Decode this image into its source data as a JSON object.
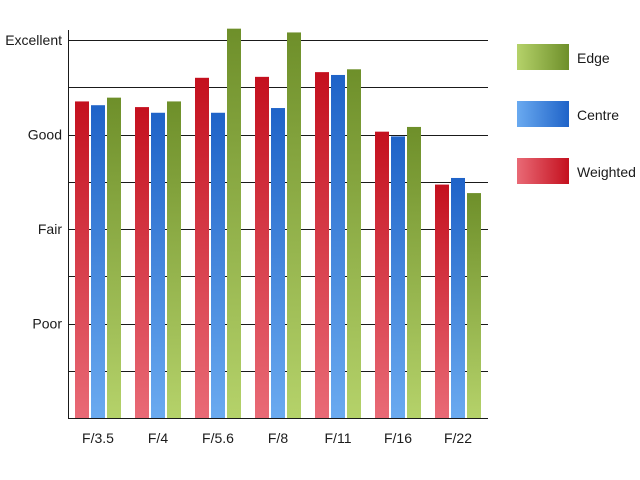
{
  "chart_data": {
    "type": "bar",
    "title": "",
    "xlabel": "",
    "ylabel": "",
    "categories": [
      "F/3.5",
      "F/4",
      "F/5.6",
      "F/8",
      "F/11",
      "F/16",
      "F/22"
    ],
    "y_tick_labels": [
      {
        "label": "Poor",
        "value": 1
      },
      {
        "label": "Fair",
        "value": 2
      },
      {
        "label": "Good",
        "value": 3
      },
      {
        "label": "Excellent",
        "value": 4
      }
    ],
    "ylim": [
      0,
      4
    ],
    "grid": true,
    "legend_position": "right",
    "series": [
      {
        "name": "Weighted",
        "color": "#c4101e",
        "light": "#e96a76",
        "values": [
          3.35,
          3.29,
          3.6,
          3.61,
          3.66,
          3.03,
          2.47
        ]
      },
      {
        "name": "Centre",
        "color": "#1f63c8",
        "light": "#6aaaf0",
        "values": [
          3.31,
          3.23,
          3.23,
          3.28,
          3.63,
          2.98,
          2.54
        ]
      },
      {
        "name": "Edge",
        "color": "#6e8f2a",
        "light": "#b5d26a",
        "values": [
          3.39,
          3.35,
          4.12,
          4.08,
          3.69,
          3.08,
          2.38
        ]
      }
    ],
    "legend_order": [
      "Edge",
      "Centre",
      "Weighted"
    ]
  }
}
